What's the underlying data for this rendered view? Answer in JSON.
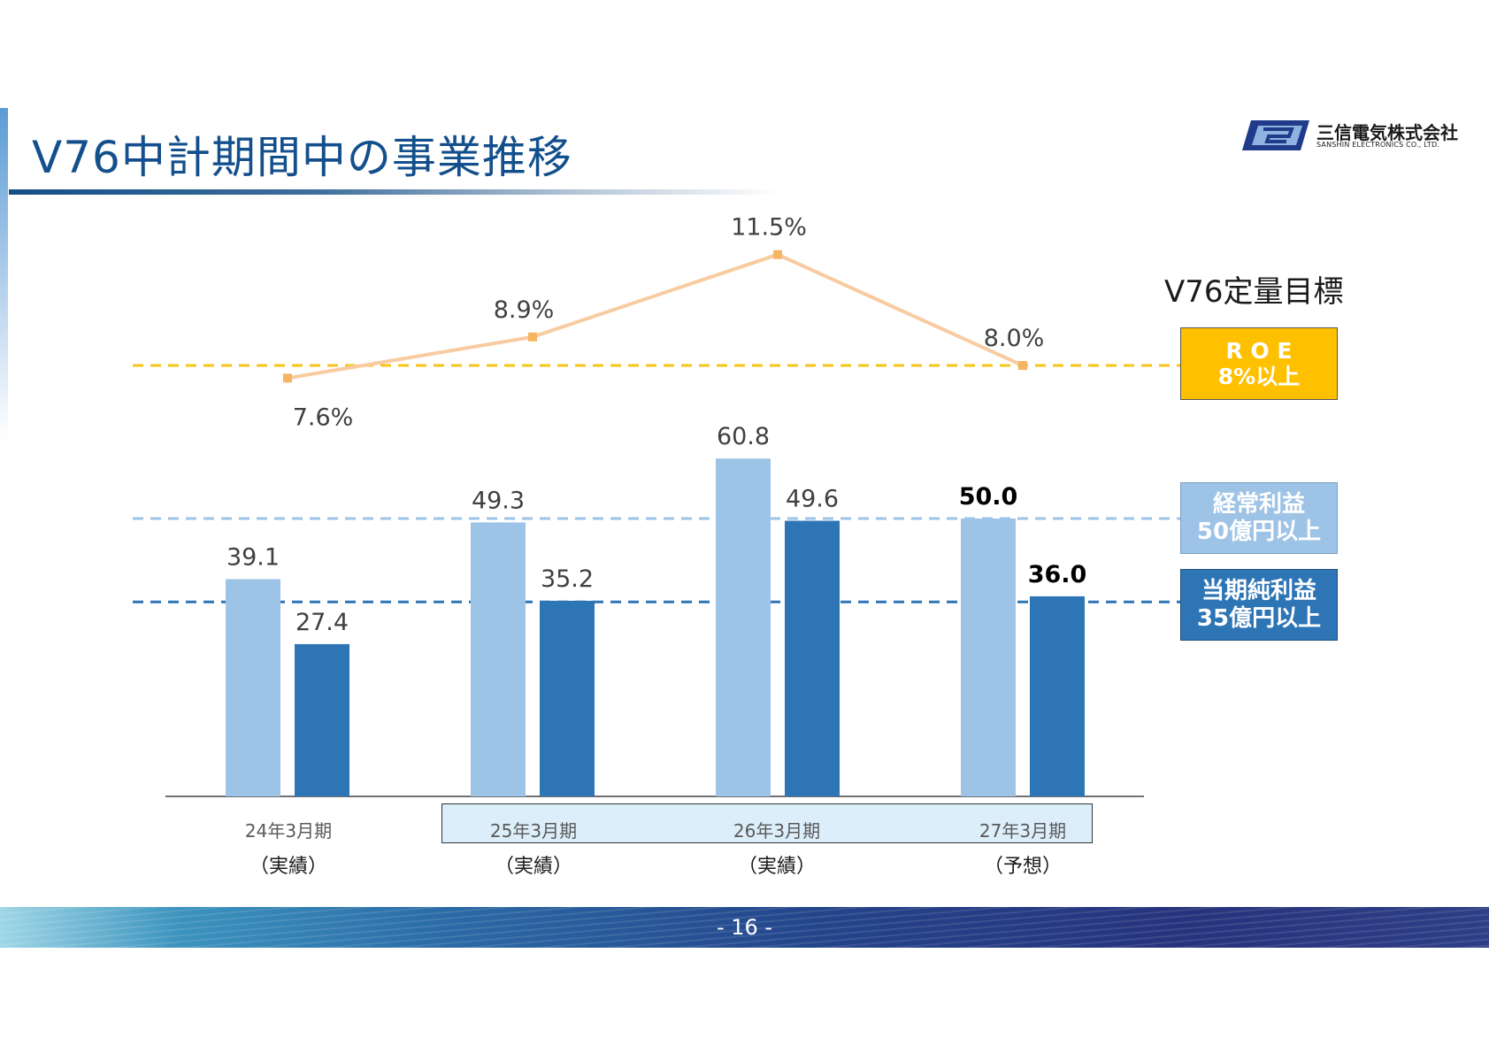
{
  "title": "V76中計期間中の事業推移",
  "logo": {
    "company_name": "三信電気株式会社",
    "company_name_en": "SANSHIN ELECTRONICS CO., LTD."
  },
  "targets": {
    "heading": "V76定量目標",
    "roe": {
      "line1": "R O E",
      "line2": "8%以上",
      "value": 8.0
    },
    "ordinary_profit": {
      "line1": "経常利益",
      "line2": "50億円以上",
      "value": 50.0
    },
    "net_profit": {
      "line1": "当期純利益",
      "line2": "35億円以上",
      "value": 35.0
    }
  },
  "chart_data": {
    "type": "bar",
    "categories": [
      "24年3月期",
      "25年3月期",
      "26年3月期",
      "27年3月期"
    ],
    "category_status": [
      "（実績）",
      "（実績）",
      "（実績）",
      "（予想）"
    ],
    "series": [
      {
        "values": [
          39.1,
          49.3,
          60.8,
          50.0
        ],
        "labels": [
          "39.1",
          "49.3",
          "60.8",
          "50.0"
        ],
        "color": "#9dc3e6"
      },
      {
        "values": [
          27.4,
          35.2,
          49.6,
          36.0
        ],
        "labels": [
          "27.4",
          "35.2",
          "49.6",
          "36.0"
        ],
        "color": "#2e75b6"
      }
    ],
    "line_series": {
      "values": [
        7.6,
        8.9,
        11.5,
        8.0
      ],
      "labels": [
        "7.6%",
        "8.9%",
        "11.5%",
        "8.0%"
      ],
      "color": "#f8cba0"
    },
    "target_lines": [
      {
        "value": 8.0,
        "axis": "percent",
        "color": "#f5c518"
      },
      {
        "value": 50.0,
        "axis": "amount",
        "color": "#9dc3e6"
      },
      {
        "value": 35.0,
        "axis": "amount",
        "color": "#2e75b6"
      }
    ],
    "forecast_bold_labels": true
  },
  "page_number": "- 16 -",
  "colors": {
    "title": "#134f8c",
    "roe_box": "#ffc000",
    "ordinary_box": "#9dc3e6",
    "net_box": "#2e75b6",
    "category_band": "#ddeefb"
  }
}
